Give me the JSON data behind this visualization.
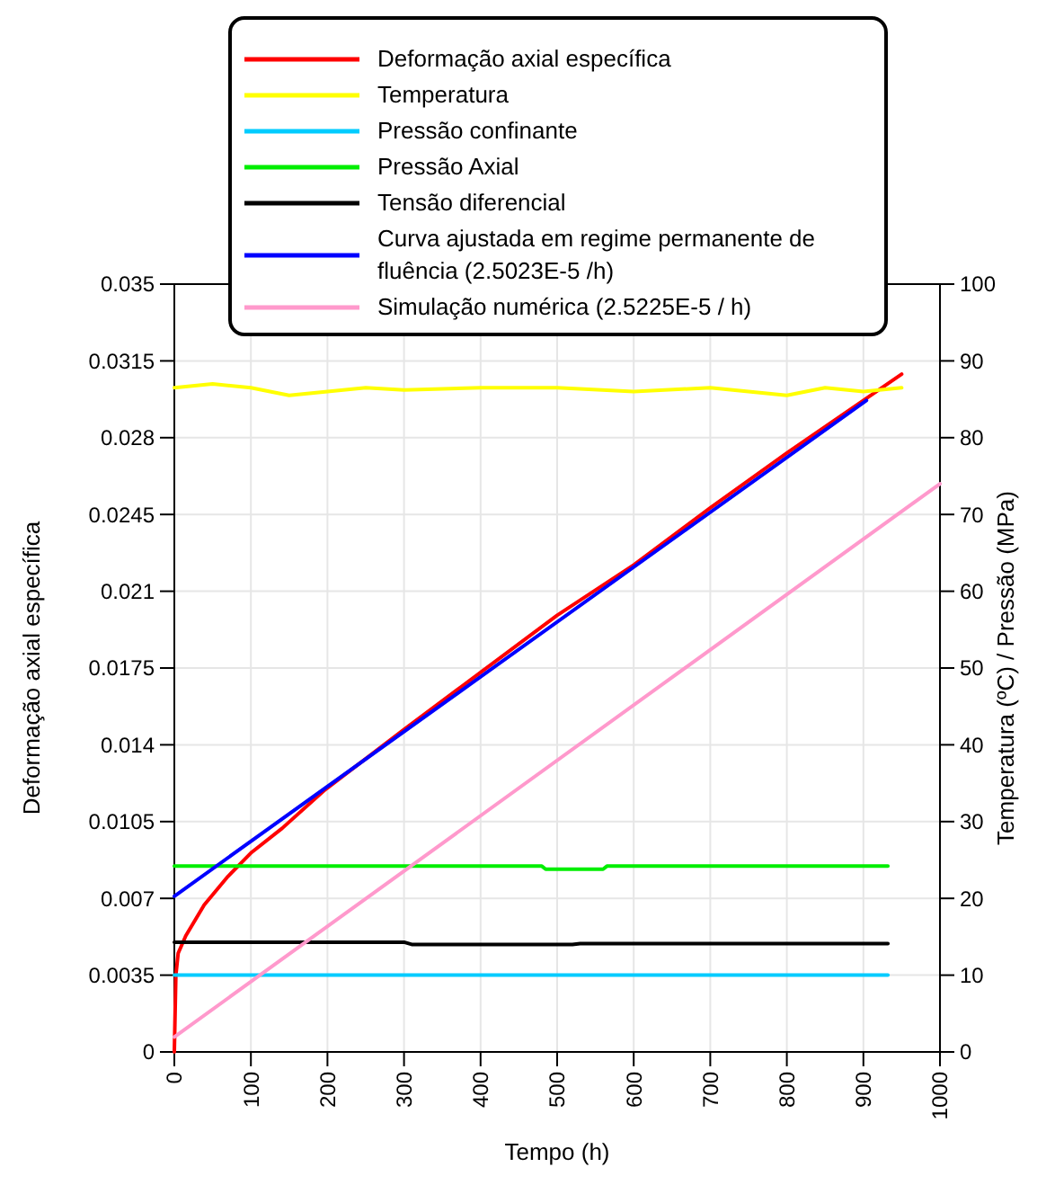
{
  "chart_data": {
    "type": "line",
    "xlabel": "Tempo (h)",
    "ylabel": "Deformação axial específica",
    "y2label": "Temperatura (ºC) / Pressão  (MPa)",
    "xlim": [
      0,
      1000
    ],
    "xticks": [
      0,
      100,
      200,
      300,
      400,
      500,
      600,
      700,
      800,
      900,
      1000
    ],
    "ylim": [
      0,
      0.035
    ],
    "yticks": [
      0,
      0.0035,
      0.007,
      0.0105,
      0.014,
      0.0175,
      0.021,
      0.0245,
      0.028,
      0.0315,
      0.035
    ],
    "y2lim": [
      0,
      100
    ],
    "y2ticks": [
      0,
      10,
      20,
      30,
      40,
      50,
      60,
      70,
      80,
      90,
      100
    ],
    "grid": true,
    "legend": "top",
    "line_style": "solid",
    "marker": "none",
    "series": [
      {
        "name": "Deformação axial específica",
        "color": "#ff0000",
        "x": [
          0,
          2,
          5,
          15,
          39,
          70,
          101,
          141,
          195,
          300,
          400,
          500,
          600,
          700,
          800,
          900,
          950
        ],
        "values": [
          0,
          0.0035,
          0.0045,
          0.0053,
          0.0067,
          0.008,
          0.0091,
          0.0102,
          0.0119,
          0.0147,
          0.0173,
          0.0199,
          0.0222,
          0.0248,
          0.0273,
          0.0297,
          0.0309
        ]
      },
      {
        "name": "Temperatura",
        "color": "#ffff00",
        "axis": "y2",
        "x": [
          0,
          50,
          100,
          150,
          200,
          250,
          300,
          400,
          500,
          600,
          700,
          800,
          850,
          900,
          950
        ],
        "values": [
          86.5,
          87,
          86.5,
          85.5,
          86,
          86.5,
          86.2,
          86.5,
          86.5,
          86,
          86.5,
          85.5,
          86.5,
          86,
          86.5
        ]
      },
      {
        "name": "Pressão confinante",
        "color": "#00ccff",
        "axis": "y2",
        "x": [
          0,
          932
        ],
        "values": [
          10,
          10
        ]
      },
      {
        "name": "Pressão Axial",
        "color": "#00ee00",
        "axis": "y2",
        "x": [
          0,
          480,
          485,
          560,
          565,
          932
        ],
        "values": [
          24.2,
          24.2,
          23.8,
          23.8,
          24.2,
          24.2
        ]
      },
      {
        "name": "Tensão diferencial",
        "color": "#000000",
        "axis": "y2",
        "x": [
          0,
          300,
          310,
          520,
          530,
          932
        ],
        "values": [
          14.3,
          14.3,
          14,
          14,
          14.1,
          14.1
        ]
      },
      {
        "name": "Curva ajustada em regime permanente de fluência (2.5023E-5 /h)",
        "color": "#0000ff",
        "x": [
          0,
          904
        ],
        "values": [
          0.0071,
          0.0297
        ]
      },
      {
        "name": "Simulação numérica (2.5225E-5 / h)",
        "color": "#ff99cc",
        "x": [
          0,
          1000
        ],
        "values": [
          0.00068,
          0.0259
        ]
      }
    ]
  }
}
